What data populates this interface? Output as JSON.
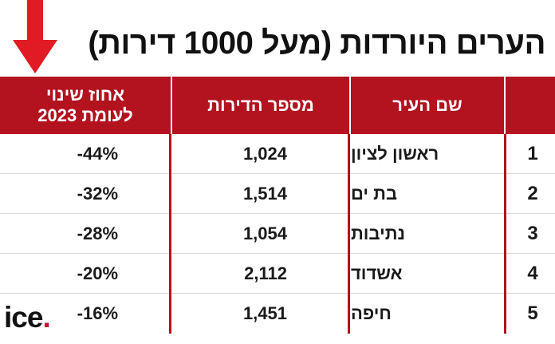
{
  "title": "הערים היורדות (מעל 1000 דירות)",
  "colors": {
    "header_red": "#b3121f",
    "arrow_red": "#e01b24"
  },
  "table": {
    "headers": {
      "city": "שם העיר",
      "apartments": "מספר הדירות",
      "change_line1": "אחוז שינוי",
      "change_line2": "לעומת 2023"
    },
    "rows": [
      {
        "rank": "1",
        "city": "ראשון לציון",
        "apartments": "1,024",
        "change": "-44%"
      },
      {
        "rank": "2",
        "city": "בת ים",
        "apartments": "1,514",
        "change": "-32%"
      },
      {
        "rank": "3",
        "city": "נתיבות",
        "apartments": "1,054",
        "change": "-28%"
      },
      {
        "rank": "4",
        "city": "אשדוד",
        "apartments": "2,112",
        "change": "-20%"
      },
      {
        "rank": "5",
        "city": "חיפה",
        "apartments": "1,451",
        "change": "-16%"
      }
    ]
  },
  "logo": {
    "text": "ice",
    "dot": "."
  },
  "icons": {
    "arrow": "down-arrow-icon"
  }
}
